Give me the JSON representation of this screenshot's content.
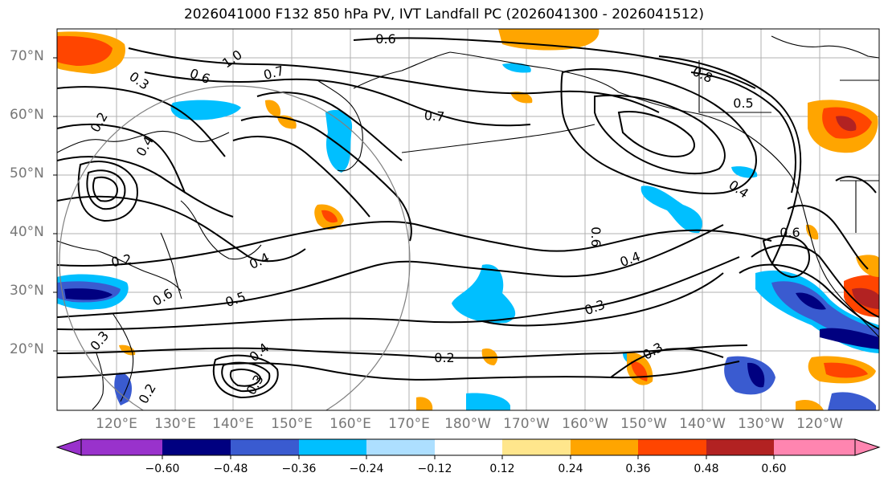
{
  "title": "2026041000 F132 850 hPa PV, IVT Landfall PC (2026041300 - 2026041512)",
  "lat_labels": [
    "70°N",
    "60°N",
    "50°N",
    "40°N",
    "30°N",
    "20°N"
  ],
  "lon_labels": [
    "120°E",
    "130°E",
    "140°E",
    "150°E",
    "160°E",
    "170°E",
    "180°W",
    "170°W",
    "160°W",
    "150°W",
    "140°W",
    "130°W",
    "120°W"
  ],
  "contour_labels": [
    "0.6",
    "1.0",
    "0.6",
    "0.7",
    "0.3",
    "0.2",
    "0.4",
    "0.7",
    "0.8",
    "0.5",
    "0.6",
    "0.4",
    "0.2",
    "0.4",
    "0.5",
    "0.6",
    "0.4",
    "0.3",
    "0.3",
    "0.2",
    "0.3",
    "0.6",
    "0.4",
    "0.3",
    "0.2"
  ],
  "colorbar": {
    "colors": [
      "#9932CC",
      "#000080",
      "#3A5BD0",
      "#00BFFF",
      "#ADDFFF",
      "#FFFFFF",
      "#FFE68C",
      "#FFA500",
      "#FF4500",
      "#B22222",
      "#FF85B0"
    ],
    "ticks": [
      "−0.60",
      "−0.48",
      "−0.36",
      "−0.24",
      "−0.12",
      "0.12",
      "0.24",
      "0.36",
      "0.48",
      "0.60"
    ]
  }
}
